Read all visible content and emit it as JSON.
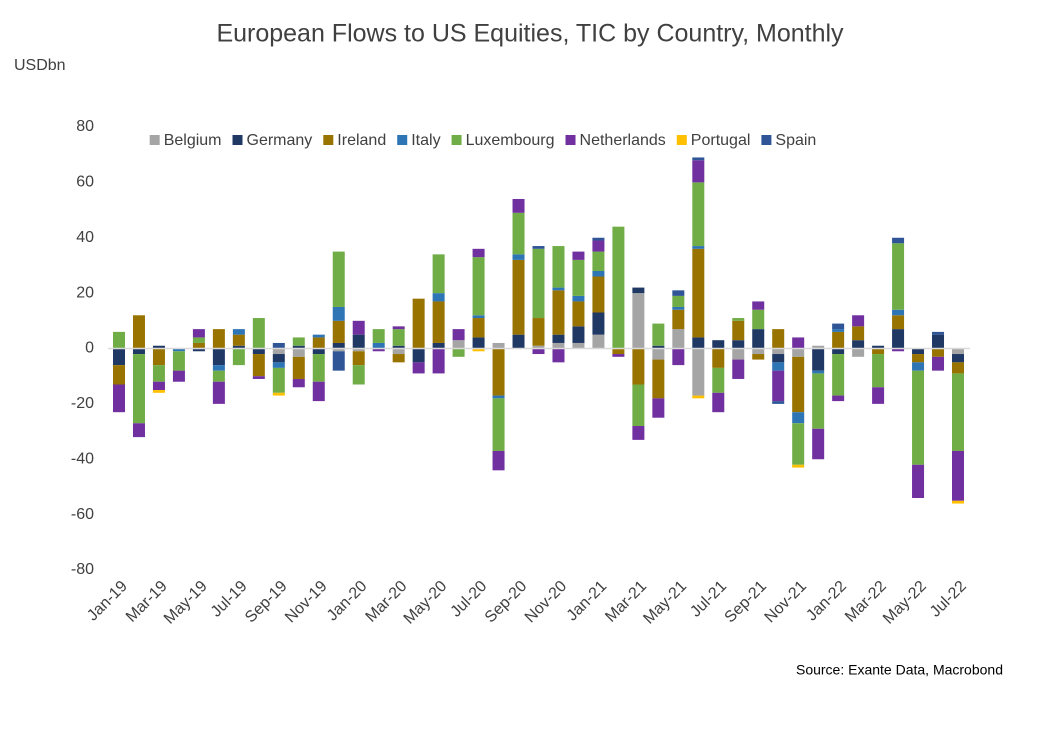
{
  "chart_data": {
    "type": "stacked-bar",
    "title": "European Flows to US Equities, TIC by Country, Monthly",
    "y_label": "USDbn",
    "source": "Source: Exante Data, Macrobond",
    "categories": [
      "Jan-19",
      null,
      "Mar-19",
      null,
      "May-19",
      null,
      "Jul-19",
      null,
      "Sep-19",
      null,
      "Nov-19",
      null,
      "Jan-20",
      null,
      "Mar-20",
      null,
      "May-20",
      null,
      "Jul-20",
      null,
      "Sep-20",
      null,
      "Nov-20",
      null,
      "Jan-21",
      null,
      "Mar-21",
      null,
      "May-21",
      null,
      "Jul-21",
      null,
      "Sep-21",
      null,
      "Nov-21",
      null,
      "Jan-22",
      null,
      "Mar-22",
      null,
      "May-22",
      null,
      "Jul-22"
    ],
    "ylim": [
      -80,
      80
    ],
    "yticks": [
      -80,
      -60,
      -40,
      -20,
      0,
      20,
      40,
      60,
      80
    ],
    "grid": false,
    "legend": "top",
    "series": [
      {
        "name": "Belgium",
        "color": "#a5a5a5",
        "values": [
          0,
          0,
          0,
          0,
          0,
          0,
          0,
          0,
          -2,
          -3,
          0,
          -1,
          -1,
          0,
          -2,
          0,
          0,
          3,
          0,
          2,
          0,
          1,
          2,
          2,
          5,
          0,
          20,
          -4,
          7,
          -17,
          0,
          -4,
          -2,
          -2,
          -3,
          1,
          0,
          -3,
          0,
          0,
          0,
          0,
          -2
        ]
      },
      {
        "name": "Germany",
        "color": "#203864",
        "values": [
          -6,
          -2,
          1,
          0,
          -1,
          -6,
          1,
          -2,
          -3,
          1,
          -2,
          2,
          5,
          0,
          1,
          -5,
          2,
          0,
          4,
          0,
          5,
          0,
          3,
          6,
          8,
          0,
          2,
          1,
          0,
          4,
          3,
          3,
          7,
          -3,
          0,
          -8,
          -2,
          3,
          1,
          7,
          -2,
          5,
          -3
        ]
      },
      {
        "name": "Ireland",
        "color": "#997300",
        "values": [
          -7,
          12,
          -6,
          0,
          2,
          7,
          4,
          -8,
          0,
          -8,
          4,
          8,
          -5,
          0,
          -3,
          18,
          15,
          0,
          7,
          -17,
          27,
          10,
          16,
          9,
          13,
          -2,
          -13,
          -14,
          7,
          32,
          -7,
          7,
          -2,
          7,
          -20,
          0,
          6,
          5,
          -2,
          5,
          -3,
          -3,
          -4
        ]
      },
      {
        "name": "Italy",
        "color": "#2e75b6",
        "values": [
          0,
          0,
          0,
          -1,
          0,
          -2,
          2,
          0,
          -2,
          0,
          1,
          5,
          0,
          2,
          0,
          0,
          3,
          0,
          1,
          -1,
          2,
          0,
          1,
          2,
          2,
          0,
          0,
          0,
          1,
          1,
          0,
          0,
          0,
          -3,
          -4,
          -1,
          1,
          0,
          0,
          2,
          -3,
          0,
          0
        ]
      },
      {
        "name": "Luxembourg",
        "color": "#70ad47",
        "values": [
          6,
          -25,
          -6,
          -7,
          2,
          -4,
          -6,
          11,
          -9,
          3,
          -10,
          20,
          -7,
          5,
          6,
          0,
          14,
          -3,
          21,
          -19,
          15,
          25,
          15,
          13,
          7,
          44,
          -15,
          8,
          4,
          23,
          -9,
          1,
          7,
          0,
          -15,
          -20,
          -15,
          0,
          -12,
          24,
          -34,
          0,
          -28
        ]
      },
      {
        "name": "Netherlands",
        "color": "#7030a0",
        "values": [
          -10,
          -5,
          -3,
          -4,
          3,
          -8,
          0,
          -1,
          0,
          -3,
          -7,
          0,
          5,
          -1,
          1,
          -4,
          -9,
          4,
          3,
          -7,
          5,
          -2,
          -5,
          3,
          4,
          -1,
          -5,
          -7,
          -6,
          8,
          -7,
          -7,
          3,
          -11,
          4,
          -11,
          -2,
          4,
          -6,
          -1,
          -12,
          -5,
          -18
        ]
      },
      {
        "name": "Portugal",
        "color": "#ffc000",
        "values": [
          0,
          0,
          -1,
          0,
          0,
          0,
          0,
          0,
          -1,
          0,
          0,
          0,
          0,
          0,
          0,
          0,
          0,
          0,
          -1,
          0,
          0,
          0,
          0,
          0,
          0,
          0,
          0,
          0,
          0,
          -1,
          0,
          0,
          0,
          0,
          -1,
          0,
          0,
          0,
          0,
          0,
          0,
          0,
          -1
        ]
      },
      {
        "name": "Spain",
        "color": "#2f5597",
        "values": [
          0,
          0,
          0,
          0,
          0,
          0,
          0,
          0,
          2,
          0,
          0,
          -7,
          0,
          0,
          0,
          0,
          0,
          0,
          0,
          0,
          0,
          1,
          0,
          0,
          1,
          0,
          0,
          0,
          2,
          1,
          0,
          0,
          0,
          -1,
          0,
          0,
          2,
          0,
          0,
          2,
          0,
          1,
          0
        ]
      }
    ]
  }
}
